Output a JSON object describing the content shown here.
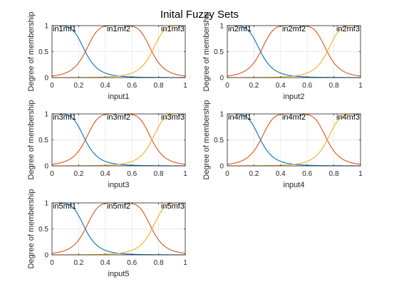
{
  "figure": {
    "title": "Inital Fuzzy Sets"
  },
  "chart_data": [
    {
      "type": "line",
      "title": "",
      "xlabel": "input1",
      "ylabel": "Degree of membership",
      "xlim": [
        0,
        1
      ],
      "ylim": [
        0,
        1
      ],
      "xticks": [
        "0",
        "0.2",
        "0.4",
        "0.6",
        "0.8",
        "1"
      ],
      "yticks": [
        "0",
        "0.5",
        "1"
      ],
      "grid": true,
      "series": [
        {
          "name": "in1mf1",
          "mf": "gbell",
          "params": [
            0.25,
            2.5,
            0
          ],
          "color": "#0072BD"
        },
        {
          "name": "in1mf2",
          "mf": "gbell",
          "params": [
            0.25,
            2.5,
            0.5
          ],
          "color": "#D95319"
        },
        {
          "name": "in1mf3",
          "mf": "gbell",
          "params": [
            0.25,
            2.5,
            1
          ],
          "color": "#EDB120"
        }
      ]
    },
    {
      "type": "line",
      "title": "",
      "xlabel": "input2",
      "ylabel": "Degree of membership",
      "xlim": [
        0,
        1
      ],
      "ylim": [
        0,
        1
      ],
      "xticks": [
        "0",
        "0.2",
        "0.4",
        "0.6",
        "0.8",
        "1"
      ],
      "yticks": [
        "0",
        "0.5",
        "1"
      ],
      "grid": true,
      "series": [
        {
          "name": "in2mf1",
          "mf": "gbell",
          "params": [
            0.25,
            2.5,
            0
          ],
          "color": "#0072BD"
        },
        {
          "name": "in2mf2",
          "mf": "gbell",
          "params": [
            0.25,
            2.5,
            0.5
          ],
          "color": "#D95319"
        },
        {
          "name": "in2mf3",
          "mf": "gbell",
          "params": [
            0.25,
            2.5,
            1
          ],
          "color": "#EDB120"
        }
      ]
    },
    {
      "type": "line",
      "title": "",
      "xlabel": "input3",
      "ylabel": "Degree of membership",
      "xlim": [
        0,
        1
      ],
      "ylim": [
        0,
        1
      ],
      "xticks": [
        "0",
        "0.2",
        "0.4",
        "0.6",
        "0.8",
        "1"
      ],
      "yticks": [
        "0",
        "0.5",
        "1"
      ],
      "grid": true,
      "series": [
        {
          "name": "in3mf1",
          "mf": "gbell",
          "params": [
            0.25,
            2.5,
            0
          ],
          "color": "#0072BD"
        },
        {
          "name": "in3mf2",
          "mf": "gbell",
          "params": [
            0.25,
            2.5,
            0.5
          ],
          "color": "#D95319"
        },
        {
          "name": "in3mf3",
          "mf": "gbell",
          "params": [
            0.25,
            2.5,
            1
          ],
          "color": "#EDB120"
        }
      ]
    },
    {
      "type": "line",
      "title": "",
      "xlabel": "input4",
      "ylabel": "Degree of membership",
      "xlim": [
        0,
        1
      ],
      "ylim": [
        0,
        1
      ],
      "xticks": [
        "0",
        "0.2",
        "0.4",
        "0.6",
        "0.8",
        "1"
      ],
      "yticks": [
        "0",
        "0.5",
        "1"
      ],
      "grid": true,
      "series": [
        {
          "name": "in4mf1",
          "mf": "gbell",
          "params": [
            0.25,
            2.5,
            0
          ],
          "color": "#0072BD"
        },
        {
          "name": "in4mf2",
          "mf": "gbell",
          "params": [
            0.25,
            2.5,
            0.5
          ],
          "color": "#D95319"
        },
        {
          "name": "in4mf3",
          "mf": "gbell",
          "params": [
            0.25,
            2.5,
            1
          ],
          "color": "#EDB120"
        }
      ]
    },
    {
      "type": "line",
      "title": "",
      "xlabel": "input5",
      "ylabel": "Degree of membership",
      "xlim": [
        0,
        1
      ],
      "ylim": [
        0,
        1
      ],
      "xticks": [
        "0",
        "0.2",
        "0.4",
        "0.6",
        "0.8",
        "1"
      ],
      "yticks": [
        "0",
        "0.5",
        "1"
      ],
      "grid": true,
      "series": [
        {
          "name": "in5mf1",
          "mf": "gbell",
          "params": [
            0.25,
            2.5,
            0
          ],
          "color": "#0072BD"
        },
        {
          "name": "in5mf2",
          "mf": "gbell",
          "params": [
            0.25,
            2.5,
            0.5
          ],
          "color": "#D95319"
        },
        {
          "name": "in5mf3",
          "mf": "gbell",
          "params": [
            0.25,
            2.5,
            1
          ],
          "color": "#EDB120"
        }
      ]
    }
  ]
}
